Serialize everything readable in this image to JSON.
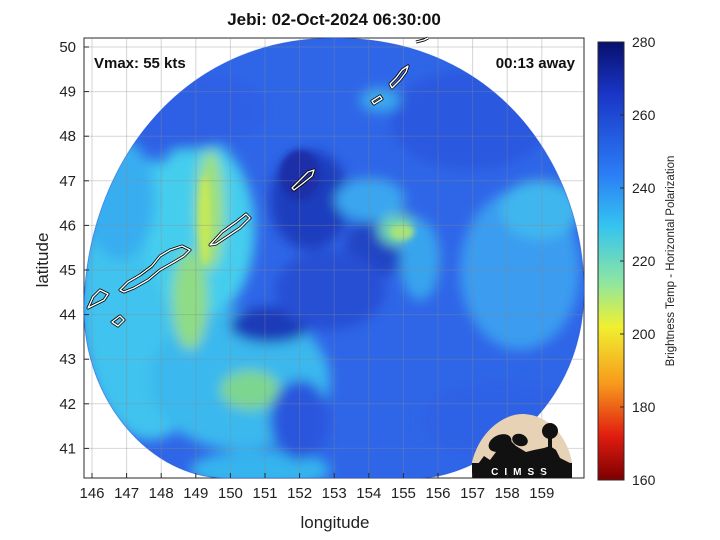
{
  "title": "Jebi: 02-Oct-2024 06:30:00",
  "vmax_label": "Vmax: 55 kts",
  "time_away": "00:13 away",
  "xlabel": "longitude",
  "ylabel": "latitude",
  "x_ticks": [
    "146",
    "147",
    "148",
    "149",
    "150",
    "151",
    "152",
    "153",
    "154",
    "155",
    "156",
    "157",
    "158",
    "159"
  ],
  "y_ticks": [
    "50",
    "49",
    "48",
    "47",
    "46",
    "45",
    "44",
    "43",
    "42",
    "41"
  ],
  "colorbar": {
    "label": "Brightness Temp - Horizontal Polarization",
    "ticks": [
      "280",
      "260",
      "240",
      "220",
      "200",
      "180",
      "160"
    ]
  },
  "logo_text": "CIMSS",
  "colors": {
    "deep_blue": "#1a2fae",
    "mid_blue": "#2f64ea",
    "cyan": "#3cc8f0",
    "green_yellow": "#b9e36a",
    "coast": "#ffffff"
  }
}
